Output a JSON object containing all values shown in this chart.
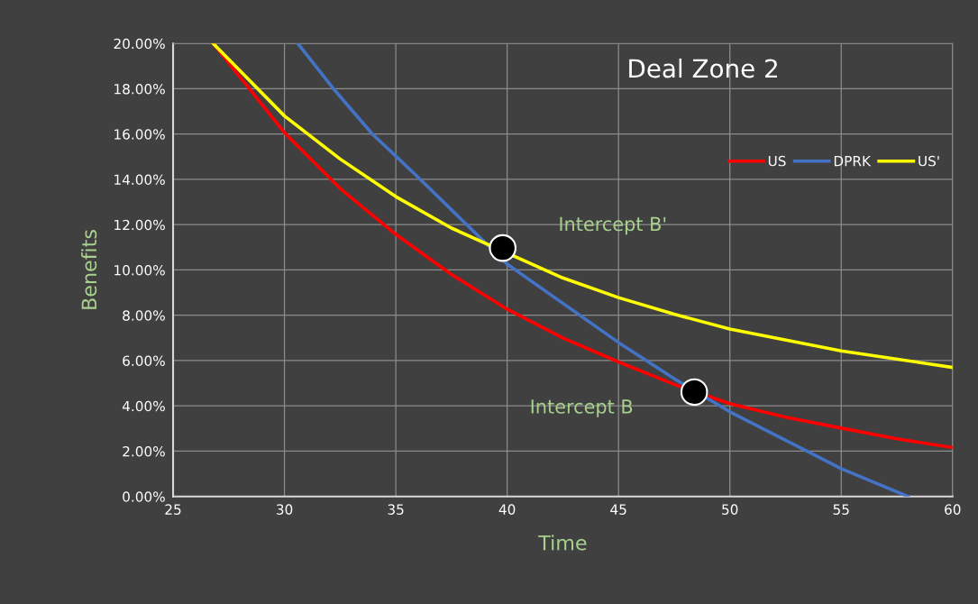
{
  "chart_data": {
    "type": "line",
    "title": "Deal Zone 2",
    "xlabel": "Time",
    "ylabel": "Benefits",
    "xlim": [
      25,
      60
    ],
    "xticks": [
      25,
      30,
      35,
      40,
      45,
      50,
      55,
      60
    ],
    "ylim": [
      0,
      0.2
    ],
    "yticks": [
      {
        "value": 0,
        "label": "0.00%"
      },
      {
        "value": 0.02,
        "label": "2.00%"
      },
      {
        "value": 0.04,
        "label": "4.00%"
      },
      {
        "value": 0.06,
        "label": "6.00%"
      },
      {
        "value": 0.08,
        "label": "8.00%"
      },
      {
        "value": 0.1,
        "label": "10.00%"
      },
      {
        "value": 0.12,
        "label": "12.00%"
      },
      {
        "value": 0.14,
        "label": "14.00%"
      },
      {
        "value": 0.16,
        "label": "16.00%"
      },
      {
        "value": 0.18,
        "label": "18.00%"
      },
      {
        "value": 0.2,
        "label": "20.00%"
      }
    ],
    "grid": true,
    "legend": "top right",
    "marker": "none",
    "line_style": "solid",
    "series": [
      {
        "name": "US",
        "color": "#ff0000",
        "x": [
          26.8,
          30,
          32.5,
          35,
          37.5,
          40,
          42.5,
          45,
          47.5,
          50,
          52.5,
          55,
          57.5,
          60
        ],
        "values": [
          0.2,
          0.1606,
          0.136,
          0.1157,
          0.098,
          0.0827,
          0.07,
          0.0594,
          0.0495,
          0.041,
          0.035,
          0.0302,
          0.0255,
          0.0216
        ]
      },
      {
        "name": "DPRK",
        "color": "#4472c4",
        "x": [
          30.6,
          32.2,
          33.95,
          35,
          36.1,
          40,
          45,
          47.5,
          50,
          55,
          58
        ],
        "values": [
          0.2,
          0.18,
          0.16,
          0.1503,
          0.14,
          0.1026,
          0.068,
          0.052,
          0.0374,
          0.0123,
          0
        ]
      },
      {
        "name": "US'",
        "color": "#ffff00",
        "x": [
          26.8,
          30,
          32.5,
          35,
          37.5,
          42.5,
          45,
          47.5,
          50,
          55,
          60
        ],
        "values": [
          0.2,
          0.168,
          0.149,
          0.1324,
          0.1185,
          0.0965,
          0.0878,
          0.0805,
          0.0739,
          0.0643,
          0.057
        ]
      },
      {
        "type": "scatter",
        "marker": "circle",
        "color": "#000000",
        "x": [
          39.8,
          48.4
        ],
        "values": [
          0.1097,
          0.0461
        ]
      }
    ],
    "annotations": [
      "Intercept B'",
      "Intercept B"
    ]
  }
}
